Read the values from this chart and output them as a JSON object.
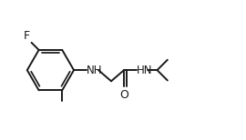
{
  "bg_color": "#ffffff",
  "line_color": "#1a1a1a",
  "text_color": "#1a1a1a",
  "label_F": "F",
  "label_NH": "NH",
  "label_HN": "HN",
  "label_O": "O",
  "font_size": 8.5,
  "line_width": 1.4,
  "figsize": [
    2.7,
    1.54
  ],
  "dpi": 100,
  "xlim": [
    0,
    10
  ],
  "ylim": [
    0,
    5.71
  ]
}
